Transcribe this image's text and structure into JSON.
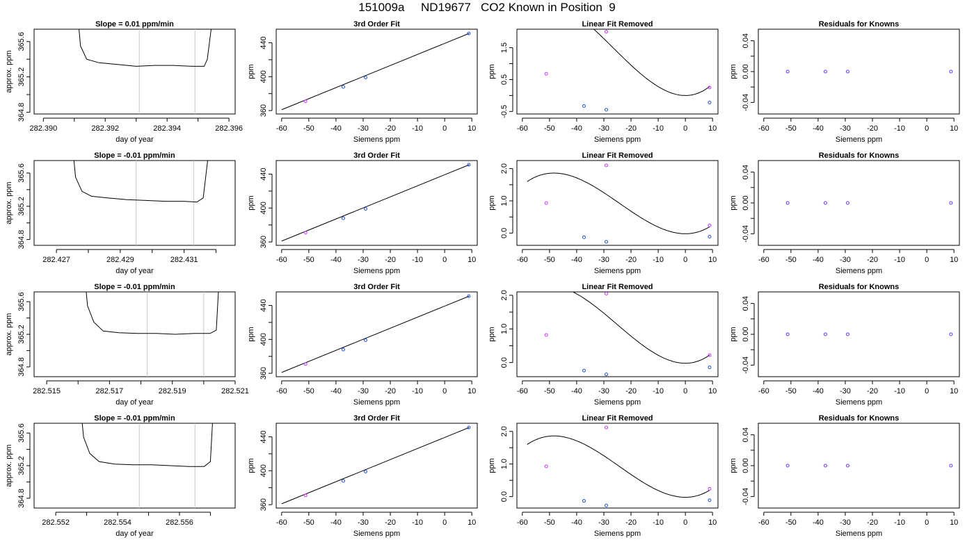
{
  "figure": {
    "title": "151009a     ND19677   CO2 Known in Position  9"
  },
  "chart_data": [
    {
      "type": "line",
      "row": 0,
      "col": 0,
      "title": "Slope =  0.01  ppm/min",
      "xlabel": "day of year",
      "ylabel": "approx. ppm",
      "xlim": [
        282.3897,
        282.3962
      ],
      "ylim": [
        364.78,
        365.74
      ],
      "xticks": [
        282.39,
        282.391,
        282.392,
        282.393,
        282.394,
        282.395,
        282.396
      ],
      "xtick_labels": [
        "282.390",
        "",
        "282.392",
        "",
        "282.394",
        "",
        "282.396"
      ],
      "yticks": [
        364.8,
        365.0,
        365.2,
        365.4,
        365.6
      ],
      "ytick_labels": [
        "364.8",
        "",
        "365.2",
        "",
        "365.6"
      ],
      "vlines": [
        282.3931,
        282.3949
      ],
      "line_x": [
        282.3911,
        282.3912,
        282.3914,
        282.3918,
        282.3924,
        282.393,
        282.3936,
        282.3942,
        282.3948,
        282.3952,
        282.3953,
        282.3955
      ],
      "line_y": [
        365.95,
        365.55,
        365.4,
        365.36,
        365.34,
        365.32,
        365.33,
        365.33,
        365.32,
        365.32,
        365.4,
        365.95
      ]
    },
    {
      "type": "scatter",
      "row": 0,
      "col": 1,
      "title": "3rd Order Fit",
      "xlabel": "Siemens ppm",
      "ylabel": "ppm",
      "xlim": [
        -62,
        12
      ],
      "ylim": [
        356,
        456
      ],
      "xticks": [
        -60,
        -50,
        -40,
        -30,
        -20,
        -10,
        0,
        10
      ],
      "xtick_labels": [
        "-60",
        "-50",
        "-40",
        "-30",
        "-20",
        "-10",
        "0",
        "10"
      ],
      "yticks": [
        360,
        380,
        400,
        420,
        440
      ],
      "ytick_labels": [
        "360",
        "",
        "400",
        "",
        "440"
      ],
      "line_x": [
        -60,
        9
      ],
      "line_y": [
        361,
        451
      ],
      "points_x": [
        -51.2,
        -37.3,
        -29.1,
        8.9
      ],
      "points_y": [
        371,
        388,
        399,
        451
      ],
      "point_colors": [
        "#cc33ff",
        "#1e4fd8",
        "#1e4fd8",
        "#1e4fd8"
      ]
    },
    {
      "type": "scatter",
      "row": 0,
      "col": 2,
      "title": "Linear Fit Removed",
      "xlabel": "Siemens ppm",
      "ylabel": "ppm",
      "xlim": [
        -62,
        12
      ],
      "ylim": [
        -0.58,
        2.08
      ],
      "xticks": [
        -60,
        -50,
        -40,
        -30,
        -20,
        -10,
        0,
        10
      ],
      "xtick_labels": [
        "-60",
        "-50",
        "-40",
        "-30",
        "-20",
        "-10",
        "0",
        "10"
      ],
      "yticks": [
        -0.5,
        0,
        0.5,
        1.0,
        1.5
      ],
      "ytick_labels": [
        "-0.5",
        "",
        "0.5",
        "",
        "1.5"
      ],
      "curve": {
        "a": 4e-05,
        "b": 0.00318,
        "c": 0,
        "d": 0
      },
      "curve_range": [
        -58.2,
        8.9
      ],
      "points_x": [
        -51.2,
        -37.3,
        -29.1,
        8.9,
        -29.1,
        8.9
      ],
      "points_y": [
        0.68,
        -0.33,
        -0.45,
        -0.22,
        2.0,
        0.25
      ],
      "point_colors": [
        "#cc33ff",
        "#1e4fd8",
        "#1e4fd8",
        "#1e4fd8",
        "#cc33ff",
        "#cc33ff"
      ]
    },
    {
      "type": "scatter",
      "row": 0,
      "col": 3,
      "title": "Residuals for Knowns",
      "xlabel": "Siemens ppm",
      "ylabel": "ppm",
      "xlim": [
        -62,
        12
      ],
      "ylim": [
        -0.055,
        0.055
      ],
      "xticks": [
        -60,
        -50,
        -40,
        -30,
        -20,
        -10,
        0,
        10
      ],
      "xtick_labels": [
        "-60",
        "-50",
        "-40",
        "-30",
        "-20",
        "-10",
        "0",
        "10"
      ],
      "yticks": [
        -0.04,
        -0.02,
        0,
        0.02,
        0.04
      ],
      "ytick_labels": [
        "-0.04",
        "",
        "0.00",
        "",
        "0.04"
      ],
      "points_x": [
        -51.2,
        -37.3,
        -29.1,
        8.9
      ],
      "points_y": [
        0,
        0,
        0,
        0
      ],
      "point_colors": [
        "#6633ee",
        "#6633ee",
        "#6633ee",
        "#6633ee"
      ]
    },
    {
      "type": "line",
      "row": 1,
      "col": 0,
      "title": "Slope =  -0.01  ppm/min",
      "xlabel": "day of year",
      "ylabel": "approx. ppm",
      "xlim": [
        282.4263,
        282.4326
      ],
      "ylim": [
        364.73,
        365.75
      ],
      "xticks": [
        282.427,
        282.428,
        282.429,
        282.43,
        282.431,
        282.432
      ],
      "xtick_labels": [
        "282.427",
        "",
        "282.429",
        "",
        "282.431",
        ""
      ],
      "yticks": [
        364.8,
        365.0,
        365.2,
        365.4,
        365.6
      ],
      "ytick_labels": [
        "364.8",
        "",
        "365.2",
        "",
        "365.6"
      ],
      "vlines": [
        282.4295,
        282.4313
      ],
      "line_x": [
        282.4275,
        282.4276,
        282.4278,
        282.4281,
        282.4286,
        282.4292,
        282.4298,
        282.4304,
        282.431,
        282.4314,
        282.4316,
        282.4318
      ],
      "line_y": [
        365.95,
        365.55,
        365.38,
        365.32,
        365.3,
        365.28,
        365.27,
        365.26,
        365.26,
        365.25,
        365.3,
        365.95
      ]
    },
    {
      "type": "scatter",
      "row": 1,
      "col": 1,
      "title": "3rd Order Fit",
      "xlabel": "Siemens ppm",
      "ylabel": "ppm",
      "xlim": [
        -62,
        12
      ],
      "ylim": [
        356,
        456
      ],
      "xticks": [
        -60,
        -50,
        -40,
        -30,
        -20,
        -10,
        0,
        10
      ],
      "xtick_labels": [
        "-60",
        "-50",
        "-40",
        "-30",
        "-20",
        "-10",
        "0",
        "10"
      ],
      "yticks": [
        360,
        380,
        400,
        420,
        440
      ],
      "ytick_labels": [
        "360",
        "",
        "400",
        "",
        "440"
      ],
      "line_x": [
        -60,
        9
      ],
      "line_y": [
        361,
        451
      ],
      "points_x": [
        -51.2,
        -37.3,
        -29.1,
        8.9
      ],
      "points_y": [
        371,
        388,
        399,
        451
      ],
      "point_colors": [
        "#cc33ff",
        "#1e4fd8",
        "#1e4fd8",
        "#1e4fd8"
      ]
    },
    {
      "type": "scatter",
      "row": 1,
      "col": 2,
      "title": "Linear Fit Removed",
      "xlabel": "Siemens ppm",
      "ylabel": "ppm",
      "xlim": [
        -62,
        12
      ],
      "ylim": [
        -0.38,
        2.25
      ],
      "xticks": [
        -60,
        -50,
        -40,
        -30,
        -20,
        -10,
        0,
        10
      ],
      "xtick_labels": [
        "-60",
        "-50",
        "-40",
        "-30",
        "-20",
        "-10",
        "0",
        "10"
      ],
      "yticks": [
        0,
        0.5,
        1.0,
        1.5,
        2.0
      ],
      "ytick_labels": [
        "0.0",
        "",
        "1.0",
        "",
        "2.0"
      ],
      "curve": {
        "a": 3.32e-05,
        "b": 0.00241,
        "c": 0,
        "d": -0.02
      },
      "curve_range": [
        -58.2,
        8.9
      ],
      "points_x": [
        -51.2,
        -37.3,
        -29.1,
        8.9,
        -29.1,
        8.9
      ],
      "points_y": [
        0.93,
        -0.13,
        -0.27,
        -0.11,
        2.1,
        0.24
      ],
      "point_colors": [
        "#cc33ff",
        "#1e4fd8",
        "#1e4fd8",
        "#1e4fd8",
        "#cc33ff",
        "#cc33ff"
      ]
    },
    {
      "type": "scatter",
      "row": 1,
      "col": 3,
      "title": "Residuals for Knowns",
      "xlabel": "Siemens ppm",
      "ylabel": "ppm",
      "xlim": [
        -62,
        12
      ],
      "ylim": [
        -0.055,
        0.055
      ],
      "xticks": [
        -60,
        -50,
        -40,
        -30,
        -20,
        -10,
        0,
        10
      ],
      "xtick_labels": [
        "-60",
        "-50",
        "-40",
        "-30",
        "-20",
        "-10",
        "0",
        "10"
      ],
      "yticks": [
        -0.04,
        -0.02,
        0,
        0.02,
        0.04
      ],
      "ytick_labels": [
        "-0.04",
        "",
        "0.00",
        "",
        "0.04"
      ],
      "points_x": [
        -51.2,
        -37.3,
        -29.1,
        8.9
      ],
      "points_y": [
        0,
        0,
        0,
        0
      ],
      "point_colors": [
        "#6633ee",
        "#6633ee",
        "#6633ee",
        "#6633ee"
      ]
    },
    {
      "type": "line",
      "row": 2,
      "col": 0,
      "title": "Slope =  -0.01  ppm/min",
      "xlabel": "day of year",
      "ylabel": "approx. ppm",
      "xlim": [
        282.5146,
        282.521
      ],
      "ylim": [
        364.68,
        365.72
      ],
      "xticks": [
        282.515,
        282.516,
        282.517,
        282.518,
        282.519,
        282.52,
        282.521
      ],
      "xtick_labels": [
        "282.515",
        "",
        "282.517",
        "",
        "282.519",
        "",
        "282.521"
      ],
      "yticks": [
        364.8,
        365.0,
        365.2,
        365.4,
        365.6
      ],
      "ytick_labels": [
        "364.8",
        "",
        "365.2",
        "",
        "365.6"
      ],
      "vlines": [
        282.5182,
        282.52
      ],
      "line_x": [
        282.5162,
        282.5163,
        282.5165,
        282.5168,
        282.5173,
        282.5179,
        282.5185,
        282.5191,
        282.5197,
        282.5202,
        282.5204,
        282.5205
      ],
      "line_y": [
        365.95,
        365.55,
        365.35,
        365.24,
        365.22,
        365.21,
        365.21,
        365.2,
        365.21,
        365.21,
        365.25,
        365.95
      ]
    },
    {
      "type": "scatter",
      "row": 2,
      "col": 1,
      "title": "3rd Order Fit",
      "xlabel": "Siemens ppm",
      "ylabel": "ppm",
      "xlim": [
        -62,
        12
      ],
      "ylim": [
        356,
        456
      ],
      "xticks": [
        -60,
        -50,
        -40,
        -30,
        -20,
        -10,
        0,
        10
      ],
      "xtick_labels": [
        "-60",
        "-50",
        "-40",
        "-30",
        "-20",
        "-10",
        "0",
        "10"
      ],
      "yticks": [
        360,
        380,
        400,
        420,
        440
      ],
      "ytick_labels": [
        "360",
        "",
        "400",
        "",
        "440"
      ],
      "line_x": [
        -60,
        9
      ],
      "line_y": [
        361,
        451
      ],
      "points_x": [
        -51.2,
        -37.3,
        -29.1,
        8.9
      ],
      "points_y": [
        371,
        388,
        399,
        451
      ],
      "point_colors": [
        "#cc33ff",
        "#1e4fd8",
        "#1e4fd8",
        "#1e4fd8"
      ]
    },
    {
      "type": "scatter",
      "row": 2,
      "col": 2,
      "title": "Linear Fit Removed",
      "xlabel": "Siemens ppm",
      "ylabel": "ppm",
      "xlim": [
        -62,
        12
      ],
      "ylim": [
        -0.42,
        2.1
      ],
      "xticks": [
        -60,
        -50,
        -40,
        -30,
        -20,
        -10,
        0,
        10
      ],
      "xtick_labels": [
        "-60",
        "-50",
        "-40",
        "-30",
        "-20",
        "-10",
        "0",
        "10"
      ],
      "yticks": [
        0,
        0.5,
        1.0,
        1.5,
        2.0
      ],
      "ytick_labels": [
        "0.0",
        "",
        "1.0",
        "",
        "2.0"
      ],
      "curve": {
        "a": 3.63e-05,
        "b": 0.00274,
        "c": 0,
        "d": -0.02
      },
      "curve_range": [
        -58.2,
        8.9
      ],
      "points_x": [
        -51.2,
        -37.3,
        -29.1,
        8.9,
        -29.1,
        8.9
      ],
      "points_y": [
        0.82,
        -0.24,
        -0.35,
        -0.14,
        2.05,
        0.22
      ],
      "point_colors": [
        "#cc33ff",
        "#1e4fd8",
        "#1e4fd8",
        "#1e4fd8",
        "#cc33ff",
        "#cc33ff"
      ]
    },
    {
      "type": "scatter",
      "row": 2,
      "col": 3,
      "title": "Residuals for Knowns",
      "xlabel": "Siemens ppm",
      "ylabel": "ppm",
      "xlim": [
        -62,
        12
      ],
      "ylim": [
        -0.055,
        0.055
      ],
      "xticks": [
        -60,
        -50,
        -40,
        -30,
        -20,
        -10,
        0,
        10
      ],
      "xtick_labels": [
        "-60",
        "-50",
        "-40",
        "-30",
        "-20",
        "-10",
        "0",
        "10"
      ],
      "yticks": [
        -0.04,
        -0.02,
        0,
        0.02,
        0.04
      ],
      "ytick_labels": [
        "-0.04",
        "",
        "0.00",
        "",
        "0.04"
      ],
      "points_x": [
        -51.2,
        -37.3,
        -29.1,
        8.9
      ],
      "points_y": [
        0,
        0,
        0,
        0
      ],
      "point_colors": [
        "#6633ee",
        "#6633ee",
        "#6633ee",
        "#6633ee"
      ]
    },
    {
      "type": "line",
      "row": 3,
      "col": 0,
      "title": "Slope =  -0.01  ppm/min",
      "xlabel": "day of year",
      "ylabel": "approx. ppm",
      "xlim": [
        282.5513,
        282.5578
      ],
      "ylim": [
        364.68,
        365.72
      ],
      "xticks": [
        282.552,
        282.553,
        282.554,
        282.555,
        282.556,
        282.557
      ],
      "xtick_labels": [
        "282.552",
        "",
        "282.554",
        "",
        "282.556",
        ""
      ],
      "yticks": [
        364.8,
        365.0,
        365.2,
        365.4,
        365.6
      ],
      "ytick_labels": [
        "364.8",
        "",
        "365.2",
        "",
        "365.6"
      ],
      "vlines": [
        282.5547,
        282.5565
      ],
      "line_x": [
        282.5528,
        282.5529,
        282.5531,
        282.5534,
        282.5539,
        282.5545,
        282.5551,
        282.5557,
        282.5563,
        282.5568,
        282.557,
        282.5571
      ],
      "line_y": [
        365.95,
        365.55,
        365.35,
        365.25,
        365.22,
        365.21,
        365.21,
        365.2,
        365.19,
        365.19,
        365.25,
        365.95
      ]
    },
    {
      "type": "scatter",
      "row": 3,
      "col": 1,
      "title": "3rd Order Fit",
      "xlabel": "Siemens ppm",
      "ylabel": "ppm",
      "xlim": [
        -62,
        12
      ],
      "ylim": [
        356,
        456
      ],
      "xticks": [
        -60,
        -50,
        -40,
        -30,
        -20,
        -10,
        0,
        10
      ],
      "xtick_labels": [
        "-60",
        "-50",
        "-40",
        "-30",
        "-20",
        "-10",
        "0",
        "10"
      ],
      "yticks": [
        360,
        380,
        400,
        420,
        440
      ],
      "ytick_labels": [
        "360",
        "",
        "400",
        "",
        "440"
      ],
      "line_x": [
        -60,
        9
      ],
      "line_y": [
        361,
        451
      ],
      "points_x": [
        -51.2,
        -37.3,
        -29.1,
        8.9
      ],
      "points_y": [
        371,
        388,
        399,
        451
      ],
      "point_colors": [
        "#cc33ff",
        "#1e4fd8",
        "#1e4fd8",
        "#1e4fd8"
      ]
    },
    {
      "type": "scatter",
      "row": 3,
      "col": 2,
      "title": "Linear Fit Removed",
      "xlabel": "Siemens ppm",
      "ylabel": "ppm",
      "xlim": [
        -62,
        12
      ],
      "ylim": [
        -0.35,
        2.25
      ],
      "xticks": [
        -60,
        -50,
        -40,
        -30,
        -20,
        -10,
        0,
        10
      ],
      "xtick_labels": [
        "-60",
        "-50",
        "-40",
        "-30",
        "-20",
        "-10",
        "0",
        "10"
      ],
      "yticks": [
        0,
        0.5,
        1.0,
        1.5,
        2.0
      ],
      "ytick_labels": [
        "0.0",
        "",
        "1.0",
        "",
        "2.0"
      ],
      "curve": {
        "a": 3.32e-05,
        "b": 0.00241,
        "c": 0,
        "d": -0.02
      },
      "curve_range": [
        -58.2,
        8.9
      ],
      "points_x": [
        -51.2,
        -37.3,
        -29.1,
        8.9,
        -29.1,
        8.9
      ],
      "points_y": [
        0.93,
        -0.13,
        -0.27,
        -0.11,
        2.12,
        0.24
      ],
      "point_colors": [
        "#cc33ff",
        "#1e4fd8",
        "#1e4fd8",
        "#1e4fd8",
        "#cc33ff",
        "#cc33ff"
      ]
    },
    {
      "type": "scatter",
      "row": 3,
      "col": 3,
      "title": "Residuals for Knowns",
      "xlabel": "Siemens ppm",
      "ylabel": "ppm",
      "xlim": [
        -62,
        12
      ],
      "ylim": [
        -0.055,
        0.055
      ],
      "xticks": [
        -60,
        -50,
        -40,
        -30,
        -20,
        -10,
        0,
        10
      ],
      "xtick_labels": [
        "-60",
        "-50",
        "-40",
        "-30",
        "-20",
        "-10",
        "0",
        "10"
      ],
      "yticks": [
        -0.04,
        -0.02,
        0,
        0.02,
        0.04
      ],
      "ytick_labels": [
        "-0.04",
        "",
        "0.00",
        "",
        "0.04"
      ],
      "points_x": [
        -51.2,
        -37.3,
        -29.1,
        8.9
      ],
      "points_y": [
        0,
        0,
        0,
        0
      ],
      "point_colors": [
        "#6633ee",
        "#6633ee",
        "#6633ee",
        "#6633ee"
      ]
    }
  ]
}
